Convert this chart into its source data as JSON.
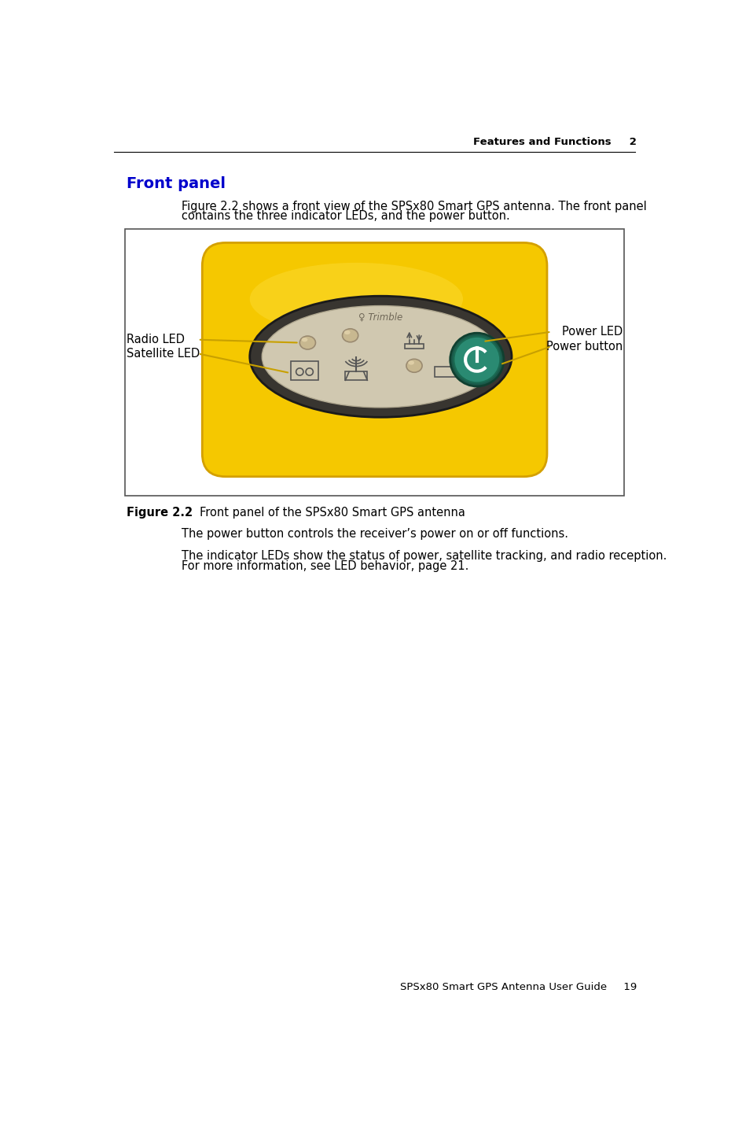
{
  "page_title_right": "Features and Functions     2",
  "page_footer": "SPSx80 Smart GPS Antenna User Guide     19",
  "section_title": "Front panel",
  "section_title_color": "#0000CC",
  "para1_line1": "Figure 2.2 shows a front view of the SPSx80 Smart GPS antenna. The front panel",
  "para1_line2": "contains the three indicator LEDs, and the power button.",
  "figure_caption_bold": "Figure 2.2",
  "figure_caption_normal": "     Front panel of the SPSx80 Smart GPS antenna",
  "para2": "The power button controls the receiver’s power on or off functions.",
  "para3_line1": "The indicator LEDs show the status of power, satellite tracking, and radio reception.",
  "para3_line2": "For more information, see LED behavior, page 21.",
  "label_radio_led": "Radio LED",
  "label_satellite_led": "Satellite LED",
  "label_power_led": "Power LED",
  "label_power_button": "Power button",
  "label_color": "#000000",
  "arrow_color": "#C8A000",
  "background_color": "#FFFFFF",
  "body_font_size": 10.5,
  "caption_font_size": 10.5,
  "section_font_size": 14,
  "header_font_size": 9.5,
  "footer_font_size": 9.5,
  "yellow_device": "#F5C800",
  "yellow_edge": "#D4A000",
  "bezel_color": "#383530",
  "panel_color": "#D0C8B0",
  "green_button": "#2A8A72",
  "green_button_light": "#3AAA8A"
}
